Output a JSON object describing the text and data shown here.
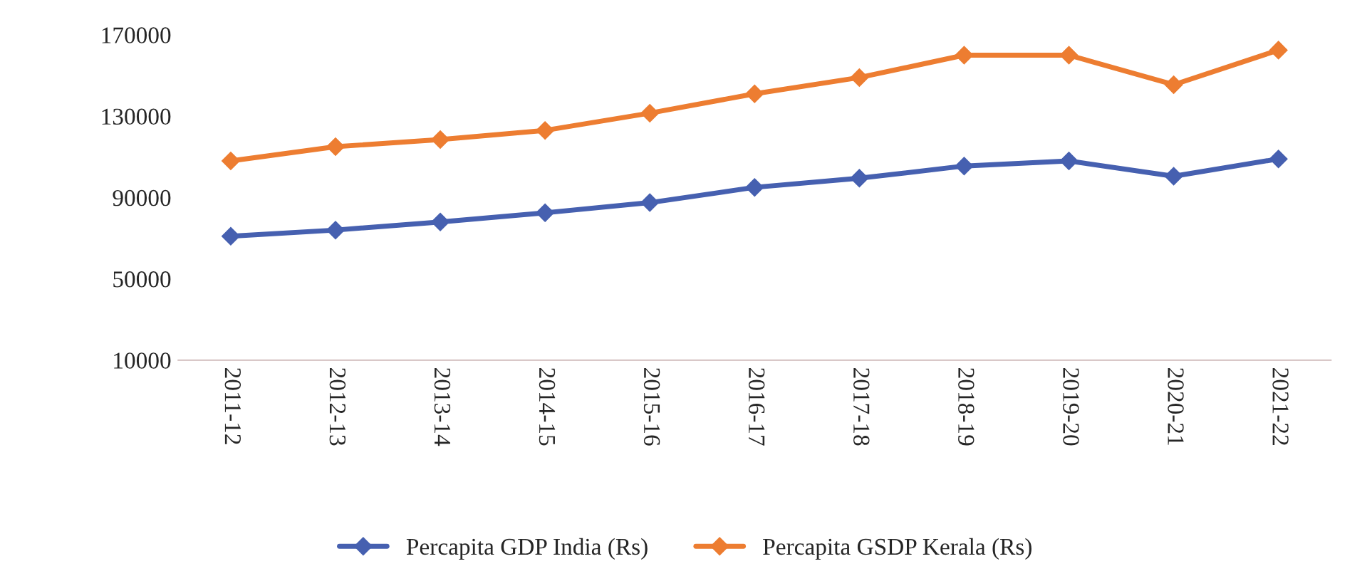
{
  "chart_data": {
    "type": "line",
    "categories": [
      "2011-12",
      "2012-13",
      "2013-14",
      "2014-15",
      "2015-16",
      "2016-17",
      "2017-18",
      "2018-19",
      "2019-20",
      "2020-21",
      "2021-22"
    ],
    "series": [
      {
        "name": "Percapita GDP India (Rs)",
        "color": "#4660b0",
        "values": [
          71000,
          74000,
          78000,
          82500,
          87500,
          95000,
          99500,
          105500,
          108000,
          100500,
          109000
        ]
      },
      {
        "name": "Percapita GSDP Kerala (Rs)",
        "color": "#ed7d31",
        "values": [
          108000,
          115000,
          118500,
          123000,
          131500,
          141000,
          149000,
          160000,
          160000,
          145500,
          162500
        ]
      }
    ],
    "ylim": [
      10000,
      170000
    ],
    "yticks": [
      10000,
      50000,
      90000,
      130000,
      170000
    ],
    "grid": false,
    "legend": "bottom",
    "marker": "diamond",
    "line_style": "solid"
  }
}
